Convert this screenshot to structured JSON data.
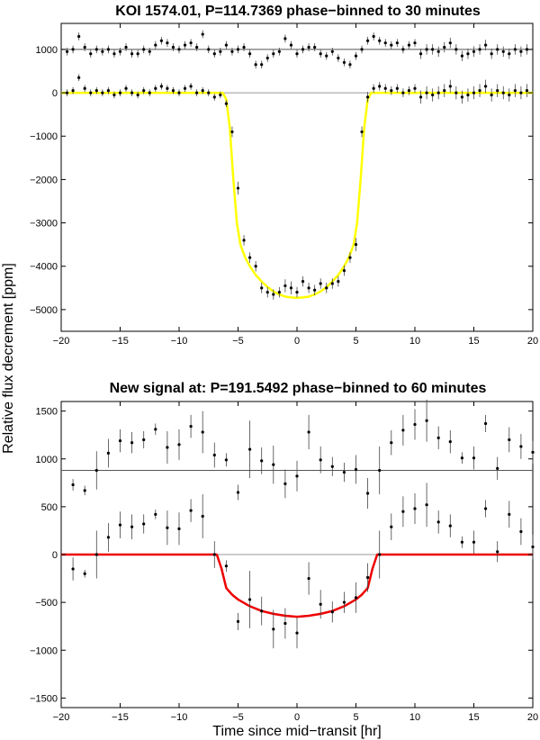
{
  "figure": {
    "ylabel": "Relative flux decrement [ppm]",
    "xlabel": "Time since mid−transit [hr]"
  },
  "chart_data": [
    {
      "type": "scatter",
      "title": "KOI 1574.01, P=114.7369 phase−binned to 30 minutes",
      "xlabel": "",
      "ylabel": "Relative flux decrement [ppm]",
      "xlim": [
        -20,
        20
      ],
      "ylim": [
        -5500,
        1600
      ],
      "xticks": [
        -20,
        -15,
        -10,
        -5,
        0,
        5,
        10,
        15,
        20
      ],
      "yticks": [
        1000,
        0,
        -1000,
        -2000,
        -3000,
        -4000,
        -5000
      ],
      "hlines": [
        1000,
        0
      ],
      "model_color": "#ffff00",
      "model": {
        "name": "",
        "x": [
          -20,
          -6.3,
          -6.0,
          -5.7,
          -5.4,
          -5.1,
          -4.8,
          -4.4,
          -4.0,
          -3.5,
          -3.0,
          -2.5,
          -2.0,
          -1.5,
          -1.0,
          -0.5,
          0,
          0.5,
          1.0,
          1.5,
          2.0,
          2.5,
          3.0,
          3.5,
          4.0,
          4.4,
          4.8,
          5.1,
          5.4,
          5.7,
          6.0,
          6.3,
          20
        ],
        "y": [
          0,
          0,
          -150,
          -800,
          -2000,
          -3000,
          -3500,
          -3800,
          -4000,
          -4200,
          -4350,
          -4480,
          -4580,
          -4650,
          -4700,
          -4720,
          -4730,
          -4720,
          -4700,
          -4650,
          -4580,
          -4480,
          -4350,
          -4200,
          -4000,
          -3800,
          -3500,
          -3000,
          -2000,
          -800,
          -150,
          0,
          0
        ]
      },
      "series": [
        {
          "name": "",
          "x": [
            -19.5,
            -19.0,
            -18.5,
            -18.0,
            -17.5,
            -17.0,
            -16.5,
            -16.0,
            -15.5,
            -15.0,
            -14.5,
            -14.0,
            -13.5,
            -13.0,
            -12.5,
            -12.0,
            -11.5,
            -11.0,
            -10.5,
            -10.0,
            -9.5,
            -9.0,
            -8.5,
            -8.0,
            -7.5,
            -7.0,
            -6.5,
            -6.0,
            -5.5,
            -5.0,
            -4.5,
            -4.0,
            -3.5,
            -3.0,
            -2.5,
            -2.0,
            -1.5,
            -1.0,
            -0.5,
            0.0,
            0.5,
            1.0,
            1.5,
            2.0,
            2.5,
            3.0,
            3.5,
            4.0,
            4.5,
            5.0,
            5.5,
            6.0,
            6.5,
            7.0,
            7.5,
            8.0,
            8.5,
            9.0,
            9.5,
            10.0,
            10.5,
            11.0,
            11.5,
            12.0,
            12.5,
            13.0,
            13.5,
            14.0,
            14.5,
            15.0,
            15.5,
            16.0,
            16.5,
            17.0,
            17.5,
            18.0,
            18.5,
            19.0,
            19.5
          ],
          "y": [
            950,
            1000,
            1300,
            1050,
            900,
            1000,
            950,
            1000,
            900,
            950,
            1050,
            900,
            900,
            1000,
            950,
            1100,
            1200,
            1150,
            1050,
            1000,
            1100,
            1150,
            1050,
            1350,
            1000,
            900,
            950,
            1100,
            950,
            1000,
            1050,
            900,
            650,
            650,
            800,
            900,
            950,
            1250,
            1100,
            900,
            1000,
            1050,
            1050,
            900,
            850,
            950,
            800,
            700,
            650,
            850,
            1000,
            1200,
            1300,
            1200,
            1150,
            1100,
            1150,
            1000,
            1100,
            1150,
            900,
            1000,
            1000,
            950,
            1050,
            1150,
            1000,
            850,
            900,
            950,
            1000,
            1100,
            900,
            1000,
            950,
            900,
            1000,
            950,
            1000
          ],
          "err": [
            90,
            90,
            90,
            90,
            90,
            90,
            90,
            90,
            90,
            90,
            90,
            90,
            90,
            90,
            90,
            90,
            90,
            90,
            90,
            90,
            90,
            90,
            90,
            90,
            90,
            90,
            90,
            90,
            90,
            90,
            90,
            90,
            90,
            90,
            90,
            90,
            90,
            90,
            90,
            90,
            90,
            90,
            90,
            90,
            90,
            90,
            90,
            90,
            90,
            90,
            90,
            90,
            90,
            90,
            90,
            90,
            90,
            90,
            90,
            90,
            120,
            120,
            120,
            120,
            120,
            120,
            120,
            120,
            120,
            120,
            120,
            120,
            120,
            120,
            120,
            120,
            120,
            120,
            120
          ]
        },
        {
          "name": "",
          "x": [
            -19.5,
            -19.0,
            -18.5,
            -18.0,
            -17.5,
            -17.0,
            -16.5,
            -16.0,
            -15.5,
            -15.0,
            -14.5,
            -14.0,
            -13.5,
            -13.0,
            -12.5,
            -12.0,
            -11.5,
            -11.0,
            -10.5,
            -10.0,
            -9.5,
            -9.0,
            -8.5,
            -8.0,
            -7.5,
            -7.0,
            -6.5,
            -6.0,
            -5.5,
            -5.0,
            -4.5,
            -4.0,
            -3.5,
            -3.0,
            -2.5,
            -2.0,
            -1.5,
            -1.0,
            -0.5,
            0.0,
            0.5,
            1.0,
            1.5,
            2.0,
            2.5,
            3.0,
            3.5,
            4.0,
            4.5,
            5.0,
            5.5,
            6.0,
            6.5,
            7.0,
            7.5,
            8.0,
            8.5,
            9.0,
            9.5,
            10.0,
            10.5,
            11.0,
            11.5,
            12.0,
            12.5,
            13.0,
            13.5,
            14.0,
            14.5,
            15.0,
            15.5,
            16.0,
            16.5,
            17.0,
            17.5,
            18.0,
            18.5,
            19.0,
            19.5
          ],
          "y": [
            0,
            50,
            350,
            100,
            0,
            50,
            0,
            50,
            -50,
            0,
            100,
            0,
            -50,
            50,
            0,
            100,
            150,
            100,
            50,
            0,
            100,
            150,
            0,
            50,
            0,
            -100,
            -50,
            -250,
            -900,
            -2200,
            -3400,
            -3800,
            -4000,
            -4500,
            -4600,
            -4650,
            -4600,
            -4450,
            -4500,
            -4600,
            -4350,
            -4500,
            -4550,
            -4400,
            -4500,
            -4400,
            -4350,
            -4100,
            -3800,
            -3500,
            -900,
            -100,
            100,
            150,
            100,
            50,
            100,
            0,
            50,
            100,
            -100,
            0,
            -50,
            0,
            50,
            150,
            0,
            -100,
            -50,
            0,
            50,
            150,
            -50,
            50,
            0,
            -50,
            50,
            0,
            50
          ],
          "err": [
            80,
            80,
            80,
            80,
            80,
            80,
            80,
            80,
            80,
            80,
            80,
            80,
            80,
            80,
            80,
            80,
            80,
            80,
            80,
            80,
            80,
            80,
            80,
            80,
            80,
            80,
            80,
            80,
            120,
            150,
            120,
            120,
            120,
            120,
            120,
            120,
            120,
            150,
            150,
            120,
            120,
            120,
            120,
            120,
            120,
            120,
            120,
            120,
            120,
            150,
            120,
            120,
            100,
            100,
            100,
            100,
            100,
            100,
            100,
            100,
            150,
            150,
            150,
            150,
            150,
            150,
            150,
            150,
            150,
            150,
            150,
            150,
            150,
            150,
            150,
            150,
            150,
            150,
            150
          ]
        }
      ]
    },
    {
      "type": "scatter",
      "title": "New signal at: P=191.5492 phase−binned to 60 minutes",
      "xlabel": "Time since mid−transit [hr]",
      "ylabel": "Relative flux decrement [ppm]",
      "xlim": [
        -20,
        20
      ],
      "ylim": [
        -1600,
        1600
      ],
      "xticks": [
        -20,
        -15,
        -10,
        -5,
        0,
        5,
        10,
        15,
        20
      ],
      "yticks": [
        1500,
        1000,
        500,
        0,
        -500,
        -1000,
        -1500
      ],
      "hlines": [
        880,
        0
      ],
      "model_color": "#ee0000",
      "model": {
        "name": "",
        "x": [
          -20,
          -6.8,
          -6.4,
          -6.0,
          -5.5,
          -5.0,
          -4.0,
          -3.0,
          -2.0,
          -1.0,
          0,
          1.0,
          2.0,
          3.0,
          4.0,
          5.0,
          5.5,
          6.0,
          6.4,
          6.8,
          20
        ],
        "y": [
          0,
          0,
          -150,
          -350,
          -420,
          -470,
          -540,
          -590,
          -620,
          -640,
          -650,
          -640,
          -620,
          -590,
          -540,
          -470,
          -420,
          -350,
          -150,
          0,
          0
        ]
      },
      "series": [
        {
          "name": "",
          "x": [
            -19,
            -18,
            -17,
            -16,
            -15,
            -14,
            -13,
            -12,
            -11,
            -10,
            -9,
            -8,
            -7,
            -6,
            -5,
            -4,
            -3,
            -2,
            -1,
            0,
            1,
            2,
            3,
            4,
            5,
            6,
            7,
            8,
            9,
            10,
            11,
            12,
            13,
            14,
            15,
            16,
            17,
            18,
            19,
            20
          ],
          "y": [
            730,
            670,
            880,
            1060,
            1190,
            1170,
            1200,
            1310,
            1120,
            1150,
            1340,
            1280,
            1040,
            990,
            650,
            1100,
            980,
            940,
            740,
            820,
            1280,
            990,
            920,
            860,
            890,
            640,
            880,
            1170,
            1300,
            1360,
            1400,
            1220,
            1180,
            1010,
            1010,
            1370,
            900,
            1200,
            1130,
            1070
          ],
          "err": [
            60,
            50,
            200,
            150,
            120,
            110,
            90,
            60,
            170,
            160,
            120,
            220,
            130,
            70,
            80,
            300,
            140,
            200,
            150,
            160,
            180,
            140,
            100,
            100,
            150,
            160,
            250,
            130,
            160,
            160,
            220,
            120,
            120,
            60,
            120,
            90,
            120,
            130,
            130,
            120
          ]
        },
        {
          "name": "",
          "x": [
            -19,
            -18,
            -17,
            -16,
            -15,
            -14,
            -13,
            -12,
            -11,
            -10,
            -9,
            -8,
            -7,
            -6,
            -5,
            -4,
            -3,
            -2,
            -1,
            0,
            1,
            2,
            3,
            4,
            5,
            6,
            7,
            8,
            9,
            10,
            11,
            12,
            13,
            14,
            15,
            16,
            17,
            18,
            19,
            20
          ],
          "y": [
            -150,
            -200,
            0,
            180,
            310,
            290,
            320,
            420,
            280,
            270,
            460,
            400,
            0,
            -120,
            -700,
            -470,
            -590,
            -780,
            -720,
            -820,
            -250,
            -520,
            -600,
            -500,
            -450,
            -240,
            0,
            290,
            450,
            480,
            520,
            340,
            300,
            130,
            130,
            480,
            30,
            420,
            240,
            80
          ],
          "err": [
            120,
            40,
            250,
            150,
            140,
            130,
            100,
            50,
            180,
            170,
            120,
            230,
            140,
            60,
            90,
            300,
            150,
            200,
            160,
            160,
            170,
            150,
            110,
            110,
            160,
            150,
            250,
            140,
            160,
            160,
            230,
            120,
            120,
            60,
            120,
            90,
            110,
            140,
            140,
            130
          ]
        }
      ]
    }
  ]
}
